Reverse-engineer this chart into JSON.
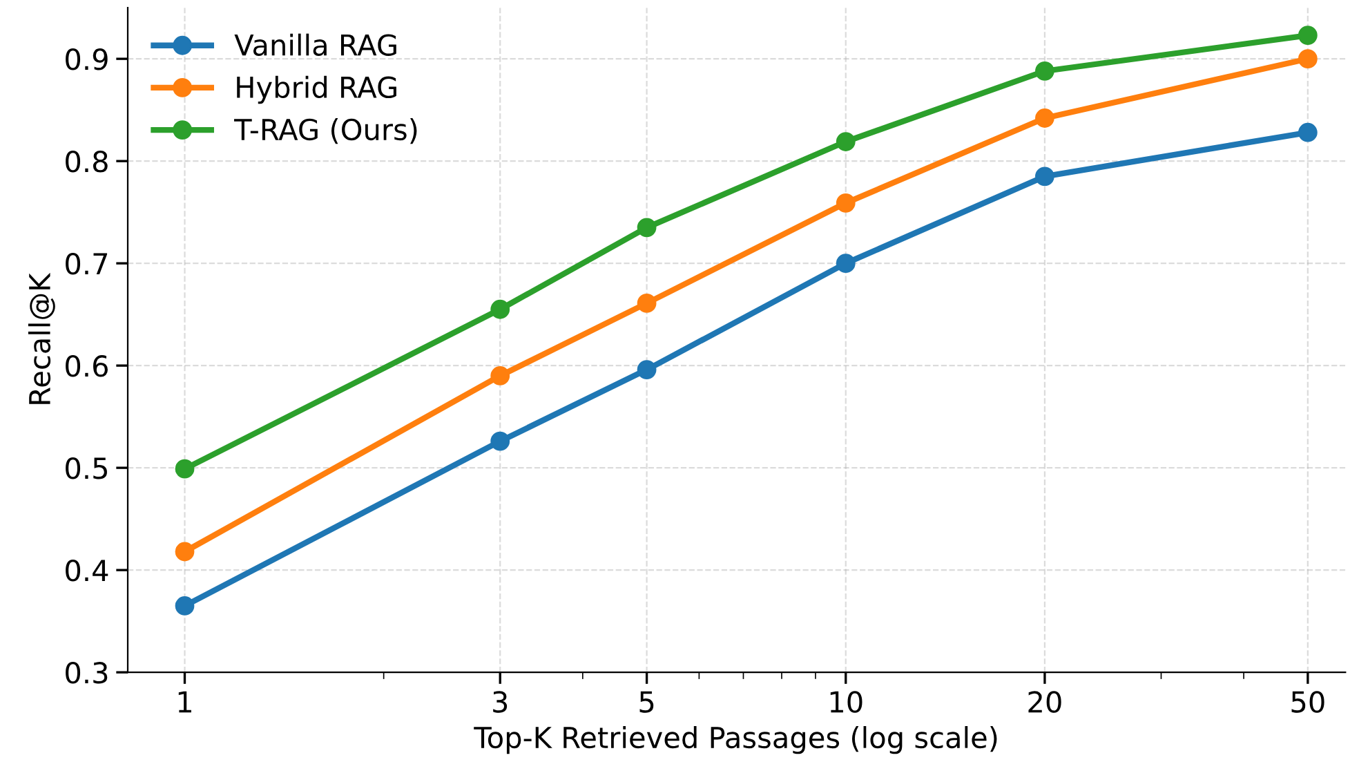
{
  "chart_data": {
    "type": "line",
    "xlabel": "Top-K Retrieved Passages (log scale)",
    "ylabel": "Recall@K",
    "x": [
      1,
      3,
      5,
      10,
      20,
      50
    ],
    "series": [
      {
        "name": "Vanilla RAG",
        "color": "#1f77b4",
        "values": [
          0.365,
          0.526,
          0.596,
          0.7,
          0.785,
          0.828
        ]
      },
      {
        "name": "Hybrid RAG",
        "color": "#ff7f0e",
        "values": [
          0.418,
          0.59,
          0.661,
          0.759,
          0.842,
          0.9
        ]
      },
      {
        "name": "T-RAG (Ours)",
        "color": "#2ca02c",
        "values": [
          0.499,
          0.655,
          0.735,
          0.819,
          0.888,
          0.923
        ]
      }
    ],
    "log": "x",
    "xlim": [
      0.82,
      57
    ],
    "ylim": [
      0.3,
      0.95
    ],
    "xticks": [
      1,
      3,
      5,
      10,
      20,
      50,
      {
        "value": 2,
        "label": null
      },
      {
        "value": 4,
        "label": null
      },
      {
        "value": 6,
        "label": null
      },
      {
        "value": 7,
        "label": null
      },
      {
        "value": 8,
        "label": null
      },
      {
        "value": 9,
        "label": null
      },
      {
        "value": 30,
        "label": null
      },
      {
        "value": 40,
        "label": null
      }
    ],
    "yticks": [
      0.3,
      0.4,
      0.5,
      0.6,
      0.7,
      0.8,
      0.9
    ],
    "grid": true,
    "legend": "top left",
    "marker": "circle",
    "line_style": "solid"
  }
}
